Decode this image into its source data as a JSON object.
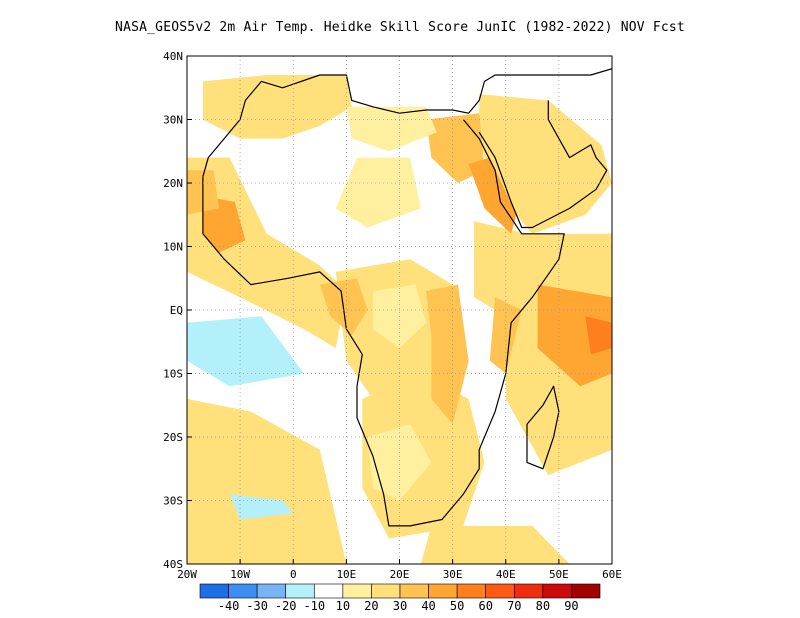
{
  "title": "NASA_GEOS5v2  2m Air Temp. Heidke Skill Score JunIC (1982-2022) NOV Fcst",
  "map": {
    "lon_range": [
      -20,
      60
    ],
    "lat_range": [
      -40,
      40
    ],
    "lon_ticks": [
      {
        "value": -20,
        "label": "20W"
      },
      {
        "value": -10,
        "label": "10W"
      },
      {
        "value": 0,
        "label": "0"
      },
      {
        "value": 10,
        "label": "10E"
      },
      {
        "value": 20,
        "label": "20E"
      },
      {
        "value": 30,
        "label": "30E"
      },
      {
        "value": 40,
        "label": "40E"
      },
      {
        "value": 50,
        "label": "50E"
      },
      {
        "value": 60,
        "label": "60E"
      }
    ],
    "lat_ticks": [
      {
        "value": 40,
        "label": "40N"
      },
      {
        "value": 30,
        "label": "30N"
      },
      {
        "value": 20,
        "label": "20N"
      },
      {
        "value": 10,
        "label": "10N"
      },
      {
        "value": 0,
        "label": "EQ"
      },
      {
        "value": -10,
        "label": "10S"
      },
      {
        "value": -20,
        "label": "20S"
      },
      {
        "value": -30,
        "label": "30S"
      },
      {
        "value": -40,
        "label": "40S"
      }
    ],
    "grid": "dotted",
    "background_color": "#ffffff"
  },
  "colorbar": {
    "colors": [
      "#1e6ee6",
      "#3c8ff0",
      "#78b4f5",
      "#b4f0fa",
      "#ffffff",
      "#fff0a0",
      "#ffe07a",
      "#ffc351",
      "#ffa632",
      "#ff7f1f",
      "#ff5a14",
      "#ee2d0e",
      "#cc0a0a",
      "#a30000"
    ],
    "labels": [
      "-40",
      "-30",
      "-20",
      "-10",
      "10",
      "20",
      "30",
      "40",
      "50",
      "60",
      "70",
      "80",
      "90"
    ]
  },
  "regions": [
    {
      "name": "nw-sahara",
      "level": 20,
      "points": [
        [
          -17,
          36
        ],
        [
          -5,
          37
        ],
        [
          10,
          37
        ],
        [
          11,
          32
        ],
        [
          5,
          29
        ],
        [
          -2,
          27
        ],
        [
          -10,
          27
        ],
        [
          -17,
          30
        ]
      ]
    },
    {
      "name": "arabia",
      "level": 20,
      "points": [
        [
          35,
          34
        ],
        [
          48,
          33
        ],
        [
          58,
          26
        ],
        [
          60,
          20
        ],
        [
          55,
          15
        ],
        [
          45,
          12
        ],
        [
          40,
          17
        ],
        [
          35,
          26
        ]
      ]
    },
    {
      "name": "west-africa-coast",
      "level": 20,
      "points": [
        [
          -20,
          24
        ],
        [
          -12,
          24
        ],
        [
          -5,
          12
        ],
        [
          5,
          7
        ],
        [
          10,
          3
        ],
        [
          8,
          -6
        ],
        [
          2,
          -3
        ],
        [
          -10,
          2
        ],
        [
          -20,
          6
        ]
      ]
    },
    {
      "name": "east-indian-ocean",
      "level": 20,
      "points": [
        [
          42,
          12
        ],
        [
          60,
          12
        ],
        [
          60,
          -22
        ],
        [
          48,
          -26
        ],
        [
          40,
          -14
        ],
        [
          40,
          2
        ]
      ]
    },
    {
      "name": "south-atlantic",
      "level": 20,
      "points": [
        [
          -20,
          -14
        ],
        [
          -8,
          -16
        ],
        [
          5,
          -22
        ],
        [
          10,
          -40
        ],
        [
          -20,
          -40
        ]
      ]
    },
    {
      "name": "southern-africa",
      "level": 20,
      "points": [
        [
          13,
          -14
        ],
        [
          24,
          -10
        ],
        [
          33,
          -14
        ],
        [
          36,
          -24
        ],
        [
          32,
          -34
        ],
        [
          18,
          -36
        ],
        [
          13,
          -28
        ]
      ]
    },
    {
      "name": "southern-ocean",
      "level": 20,
      "points": [
        [
          26,
          -34
        ],
        [
          45,
          -34
        ],
        [
          52,
          -40
        ],
        [
          24,
          -40
        ]
      ]
    },
    {
      "name": "central-africa",
      "level": 20,
      "points": [
        [
          8,
          6
        ],
        [
          22,
          8
        ],
        [
          30,
          4
        ],
        [
          30,
          -10
        ],
        [
          15,
          -14
        ],
        [
          10,
          -8
        ]
      ]
    },
    {
      "name": "ethiopia",
      "level": 20,
      "points": [
        [
          34,
          14
        ],
        [
          44,
          12
        ],
        [
          48,
          6
        ],
        [
          42,
          -2
        ],
        [
          34,
          2
        ]
      ]
    },
    {
      "name": "gulf-of-guinea",
      "level": 30,
      "points": [
        [
          5,
          4
        ],
        [
          12,
          5
        ],
        [
          14,
          0
        ],
        [
          11,
          -4
        ],
        [
          7,
          -1
        ]
      ]
    },
    {
      "name": "east-rift",
      "level": 30,
      "points": [
        [
          25,
          3
        ],
        [
          31,
          4
        ],
        [
          33,
          -8
        ],
        [
          30,
          -18
        ],
        [
          26,
          -14
        ],
        [
          26,
          -4
        ]
      ]
    },
    {
      "name": "nile-delta",
      "level": 30,
      "points": [
        [
          25,
          30
        ],
        [
          35,
          31
        ],
        [
          36,
          22
        ],
        [
          31,
          20
        ],
        [
          26,
          24
        ]
      ]
    },
    {
      "name": "red-sea",
      "level": 40,
      "points": [
        [
          33,
          23
        ],
        [
          37,
          24
        ],
        [
          42,
          15
        ],
        [
          41,
          12
        ],
        [
          36,
          16
        ]
      ]
    },
    {
      "name": "senegal",
      "level": 40,
      "points": [
        [
          -17,
          18
        ],
        [
          -11,
          17
        ],
        [
          -9,
          11
        ],
        [
          -14,
          9
        ],
        [
          -17,
          12
        ]
      ]
    },
    {
      "name": "west-sahara",
      "level": 30,
      "points": [
        [
          -20,
          22
        ],
        [
          -15,
          22
        ],
        [
          -14,
          16
        ],
        [
          -20,
          15
        ]
      ]
    },
    {
      "name": "indian-ocean-core",
      "level": 40,
      "points": [
        [
          46,
          4
        ],
        [
          60,
          2
        ],
        [
          60,
          -10
        ],
        [
          54,
          -12
        ],
        [
          46,
          -6
        ]
      ]
    },
    {
      "name": "indian-ocean-peak",
      "level": 50,
      "points": [
        [
          55,
          -1
        ],
        [
          60,
          -2
        ],
        [
          60,
          -6
        ],
        [
          56,
          -7
        ]
      ]
    },
    {
      "name": "east-africa-strip",
      "level": 30,
      "points": [
        [
          38,
          2
        ],
        [
          43,
          0
        ],
        [
          40,
          -10
        ],
        [
          37,
          -8
        ]
      ]
    },
    {
      "name": "south-atlantic-blue",
      "level": -10,
      "points": [
        [
          -20,
          -2
        ],
        [
          -6,
          -1
        ],
        [
          2,
          -10
        ],
        [
          -12,
          -12
        ],
        [
          -20,
          -8
        ]
      ]
    },
    {
      "name": "cape-blue",
      "level": -10,
      "points": [
        [
          -12,
          -29
        ],
        [
          -2,
          -30
        ],
        [
          0,
          -32
        ],
        [
          -10,
          -33
        ]
      ]
    },
    {
      "name": "sahara-white",
      "level": 10,
      "points": [
        [
          12,
          24
        ],
        [
          22,
          24
        ],
        [
          24,
          16
        ],
        [
          14,
          13
        ],
        [
          8,
          16
        ]
      ]
    },
    {
      "name": "libya-white",
      "level": 10,
      "points": [
        [
          10,
          32
        ],
        [
          25,
          32
        ],
        [
          27,
          28
        ],
        [
          18,
          25
        ],
        [
          11,
          27
        ]
      ]
    },
    {
      "name": "congo-white",
      "level": 10,
      "points": [
        [
          15,
          3
        ],
        [
          23,
          4
        ],
        [
          25,
          -2
        ],
        [
          20,
          -6
        ],
        [
          15,
          -3
        ]
      ]
    },
    {
      "name": "kalahari-white",
      "level": 10,
      "points": [
        [
          14,
          -20
        ],
        [
          22,
          -18
        ],
        [
          26,
          -24
        ],
        [
          20,
          -30
        ],
        [
          15,
          -28
        ]
      ]
    }
  ],
  "coastline": [
    [
      -17,
      21
    ],
    [
      -16,
      24
    ],
    [
      -13,
      27
    ],
    [
      -10,
      30
    ],
    [
      -9,
      33
    ],
    [
      -6,
      36
    ],
    [
      -2,
      35
    ],
    [
      5,
      37
    ],
    [
      10,
      37
    ],
    [
      11,
      33
    ],
    [
      15,
      32
    ],
    [
      20,
      31
    ],
    [
      25,
      31.5
    ],
    [
      30,
      31.5
    ],
    [
      33,
      31
    ],
    [
      35,
      33
    ],
    [
      36,
      36
    ],
    [
      38,
      37
    ],
    [
      44,
      37
    ],
    [
      50,
      37
    ],
    [
      56,
      37
    ],
    [
      60,
      38
    ]
  ],
  "coastline2": [
    [
      32,
      30
    ],
    [
      35,
      27
    ],
    [
      38,
      22
    ],
    [
      39,
      17
    ],
    [
      43,
      12
    ],
    [
      51,
      12
    ],
    [
      50,
      8
    ],
    [
      45,
      2
    ],
    [
      41,
      -2
    ],
    [
      40,
      -10
    ],
    [
      38,
      -16
    ],
    [
      35,
      -22
    ],
    [
      35,
      -25
    ],
    [
      32,
      -29
    ],
    [
      28,
      -33
    ],
    [
      22,
      -34
    ],
    [
      18,
      -34
    ],
    [
      17,
      -29
    ],
    [
      15,
      -23
    ],
    [
      12,
      -17
    ],
    [
      12,
      -12
    ],
    [
      13,
      -7
    ],
    [
      10,
      -3
    ],
    [
      9,
      3
    ],
    [
      5,
      6
    ],
    [
      -1,
      5
    ],
    [
      -8,
      4
    ],
    [
      -13,
      8
    ],
    [
      -17,
      12
    ],
    [
      -17,
      17
    ],
    [
      -17,
      21
    ]
  ],
  "arabia_coast": [
    [
      35,
      28
    ],
    [
      38,
      24
    ],
    [
      41,
      17
    ],
    [
      43,
      13
    ],
    [
      45,
      13
    ],
    [
      52,
      16
    ],
    [
      57,
      19
    ],
    [
      59,
      22
    ],
    [
      57,
      24
    ],
    [
      56,
      26
    ],
    [
      52,
      24
    ],
    [
      50,
      27
    ],
    [
      48,
      30
    ],
    [
      48,
      33
    ]
  ],
  "madagascar": [
    [
      49,
      -12
    ],
    [
      50,
      -16
    ],
    [
      49,
      -20
    ],
    [
      47,
      -25
    ],
    [
      44,
      -24
    ],
    [
      44,
      -18
    ],
    [
      47,
      -15
    ]
  ]
}
